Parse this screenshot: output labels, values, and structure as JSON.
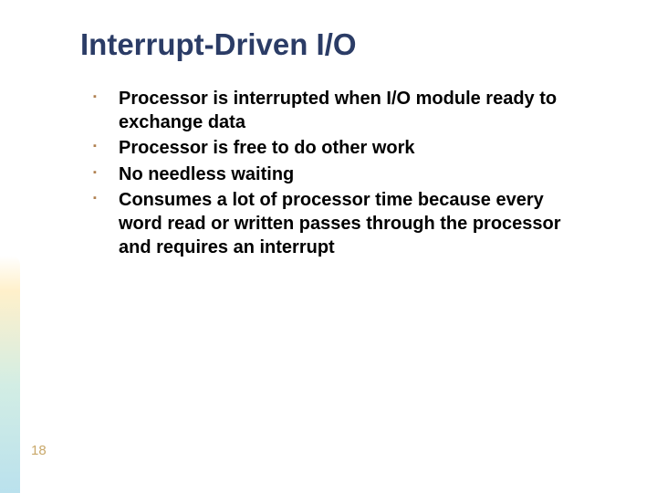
{
  "slide": {
    "title": "Interrupt-Driven I/O",
    "title_color": "#2b3c66",
    "title_fontsize": 33,
    "bullet_color": "#b08050",
    "body_fontsize": 20,
    "body_color": "#000000",
    "bullets": [
      "Processor is interrupted when I/O module ready to exchange data",
      "Processor is free to do other work",
      "No needless waiting",
      "Consumes a lot of processor time because every word read or written passes through the processor and requires an interrupt"
    ],
    "page_number": "18",
    "page_number_color": "#c9a86a",
    "accent_gradient": [
      "#ffe6a0",
      "#b4e1d2",
      "#8ccde1"
    ],
    "background_color": "#ffffff"
  }
}
